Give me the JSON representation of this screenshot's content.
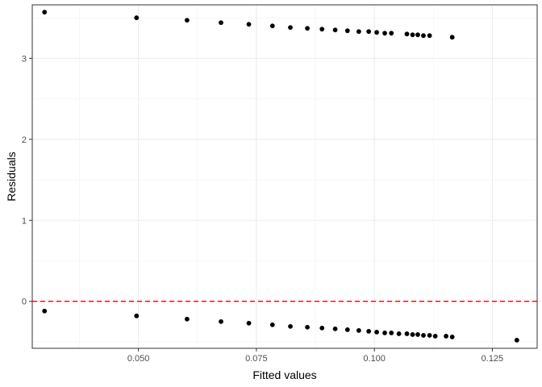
{
  "chart_data": {
    "type": "scatter",
    "title": "",
    "xlabel": "Fitted values",
    "ylabel": "Residuals",
    "xlim": [
      0.0275,
      0.1345
    ],
    "ylim": [
      -0.58,
      3.66
    ],
    "x_ticks": [
      0.05,
      0.075,
      0.1,
      0.125
    ],
    "x_tick_labels": [
      "0.050",
      "0.075",
      "0.100",
      "0.125"
    ],
    "y_ticks": [
      0,
      1,
      2,
      3
    ],
    "y_tick_labels": [
      "0",
      "1",
      "2",
      "3"
    ],
    "grid": true,
    "reference_line": {
      "y": 0,
      "style": "dashed",
      "color": "#ff0000"
    },
    "point_color": "#000000",
    "series": [
      {
        "x": [
          0.0301,
          0.0496,
          0.0603,
          0.0675,
          0.0734,
          0.0784,
          0.0822,
          0.0858,
          0.0889,
          0.0917,
          0.0943,
          0.0967,
          0.0988,
          0.1005,
          0.1022,
          0.1036,
          0.1069,
          0.1081,
          0.1092,
          0.1104,
          0.1117,
          0.1165
        ],
        "y": [
          3.57,
          3.5,
          3.47,
          3.44,
          3.42,
          3.4,
          3.38,
          3.37,
          3.36,
          3.35,
          3.34,
          3.33,
          3.33,
          3.32,
          3.31,
          3.31,
          3.3,
          3.29,
          3.29,
          3.28,
          3.28,
          3.26
        ]
      },
      {
        "x": [
          0.0301,
          0.0496,
          0.0603,
          0.0675,
          0.0734,
          0.0784,
          0.0822,
          0.0858,
          0.0889,
          0.0917,
          0.0943,
          0.0967,
          0.0988,
          0.1005,
          0.1022,
          0.1036,
          0.1052,
          0.1069,
          0.1081,
          0.1092,
          0.1104,
          0.1117,
          0.1129,
          0.1152,
          0.1165,
          0.1302
        ],
        "y": [
          -0.12,
          -0.18,
          -0.22,
          -0.25,
          -0.27,
          -0.29,
          -0.31,
          -0.32,
          -0.33,
          -0.34,
          -0.35,
          -0.36,
          -0.37,
          -0.38,
          -0.39,
          -0.39,
          -0.4,
          -0.4,
          -0.41,
          -0.41,
          -0.42,
          -0.42,
          -0.43,
          -0.43,
          -0.44,
          -0.48
        ]
      }
    ]
  }
}
